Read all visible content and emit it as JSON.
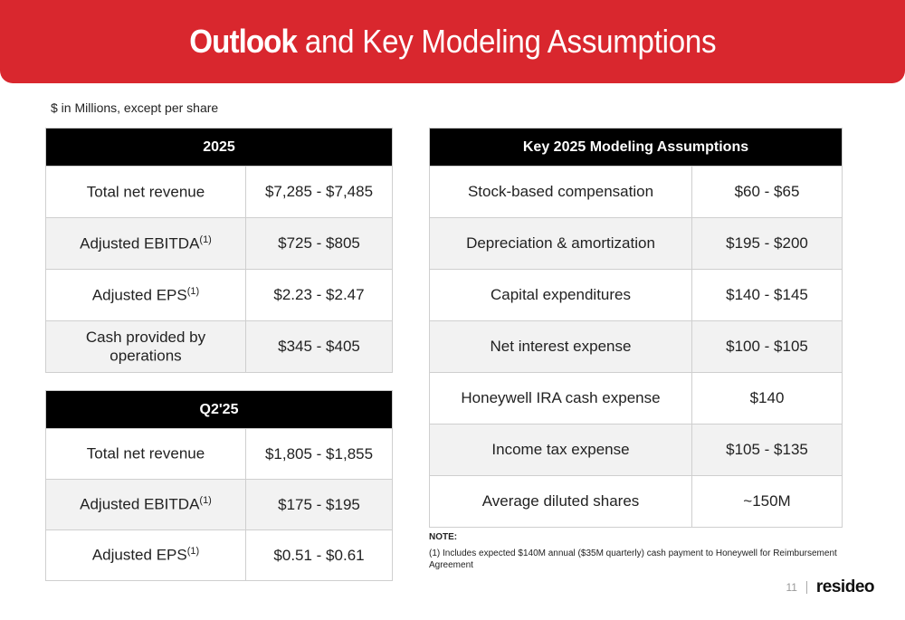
{
  "header": {
    "title_bold": "Outlook",
    "title_rest": " and Key Modeling Assumptions"
  },
  "units_note": "$ in Millions, except per share",
  "table_2025": {
    "heading": "2025",
    "rows": [
      {
        "label": "Total net revenue",
        "sup": "",
        "value": "$7,285 - $7,485"
      },
      {
        "label": "Adjusted EBITDA",
        "sup": "(1)",
        "value": "$725 - $805"
      },
      {
        "label": "Adjusted EPS",
        "sup": "(1)",
        "value": "$2.23 - $2.47"
      },
      {
        "label": "Cash provided by operations",
        "sup": "",
        "value": "$345 - $405"
      }
    ]
  },
  "table_q2": {
    "heading": "Q2'25",
    "rows": [
      {
        "label": "Total net revenue",
        "sup": "",
        "value": "$1,805 - $1,855"
      },
      {
        "label": "Adjusted EBITDA",
        "sup": "(1)",
        "value": "$175 - $195"
      },
      {
        "label": "Adjusted EPS",
        "sup": "(1)",
        "value": "$0.51 - $0.61"
      }
    ]
  },
  "table_key": {
    "heading": "Key 2025 Modeling Assumptions",
    "rows": [
      {
        "label": "Stock-based compensation",
        "value": "$60 - $65"
      },
      {
        "label": "Depreciation & amortization",
        "value": "$195 - $200"
      },
      {
        "label": "Capital expenditures",
        "value": "$140 - $145"
      },
      {
        "label": "Net interest expense",
        "value": "$100 - $105"
      },
      {
        "label": "Honeywell IRA cash expense",
        "value": "$140"
      },
      {
        "label": "Income tax expense",
        "value": "$105 - $135"
      },
      {
        "label": "Average diluted shares",
        "value": "~150M"
      }
    ]
  },
  "note": {
    "label": "NOTE:",
    "text": "(1) Includes expected $140M annual ($35M quarterly) cash payment to Honeywell for Reimbursement Agreement"
  },
  "footer": {
    "page_number": "11",
    "logo": "resideo"
  },
  "colors": {
    "brand_red": "#d9272e",
    "header_black": "#000000",
    "alt_row": "#f2f2f2"
  }
}
